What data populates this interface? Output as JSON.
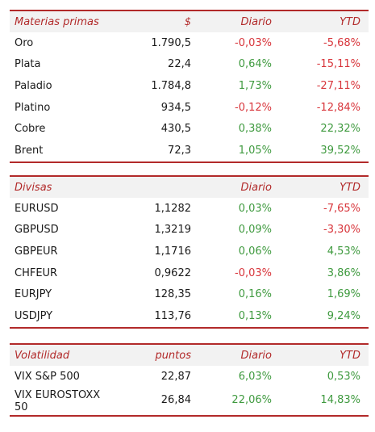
{
  "commodities": {
    "headers": [
      "Materias primas",
      "$",
      "Diario",
      "YTD"
    ],
    "rows": [
      {
        "name": "Oro",
        "value": "1.790,5",
        "daily": "-0,03%",
        "ytd": "-5,68%"
      },
      {
        "name": "Plata",
        "value": "22,4",
        "daily": "0,64%",
        "ytd": "-15,11%"
      },
      {
        "name": "Paladio",
        "value": "1.784,8",
        "daily": "1,73%",
        "ytd": "-27,11%"
      },
      {
        "name": "Platino",
        "value": "934,5",
        "daily": "-0,12%",
        "ytd": "-12,84%"
      },
      {
        "name": "Cobre",
        "value": "430,5",
        "daily": "0,38%",
        "ytd": "22,32%"
      },
      {
        "name": "Brent",
        "value": "72,3",
        "daily": "1,05%",
        "ytd": "39,52%"
      }
    ]
  },
  "currencies": {
    "headers": [
      "Divisas",
      "",
      "Diario",
      "YTD"
    ],
    "rows": [
      {
        "name": "EURUSD",
        "value": "1,1282",
        "daily": "0,03%",
        "ytd": "-7,65%"
      },
      {
        "name": "GBPUSD",
        "value": "1,3219",
        "daily": "0,09%",
        "ytd": "-3,30%"
      },
      {
        "name": "GBPEUR",
        "value": "1,1716",
        "daily": "0,06%",
        "ytd": "4,53%"
      },
      {
        "name": "CHFEUR",
        "value": "0,9622",
        "daily": "-0,03%",
        "ytd": "3,86%"
      },
      {
        "name": "EURJPY",
        "value": "128,35",
        "daily": "0,16%",
        "ytd": "1,69%"
      },
      {
        "name": "USDJPY",
        "value": "113,76",
        "daily": "0,13%",
        "ytd": "9,24%"
      }
    ]
  },
  "volatility": {
    "headers": [
      "Volatilidad",
      "puntos",
      "Diario",
      "YTD"
    ],
    "rows": [
      {
        "name": "VIX S&P 500",
        "value": "22,87",
        "daily": "6,03%",
        "ytd": "0,53%"
      },
      {
        "name": "VIX EUROSTOXX 50",
        "value": "26,84",
        "daily": "22,06%",
        "ytd": "14,83%"
      }
    ]
  },
  "colors": {
    "accent": "#b22a2a",
    "positive": "#3f9a3f",
    "negative": "#d8353b",
    "header_bg": "#f2f2f2"
  }
}
